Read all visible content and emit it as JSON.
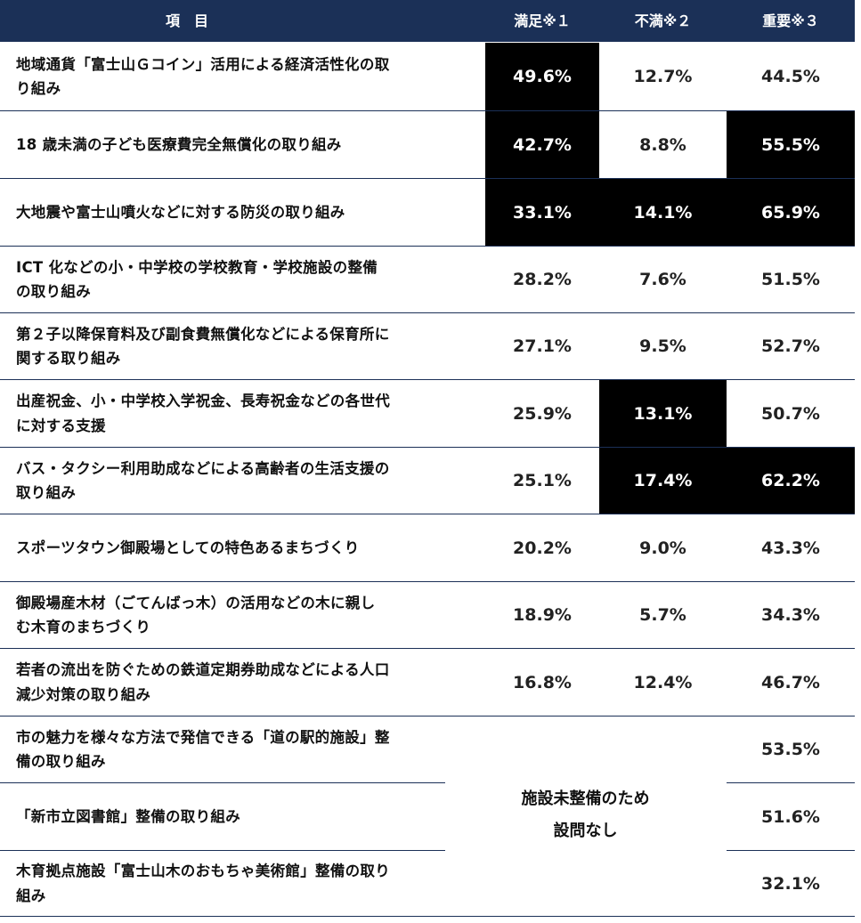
{
  "header": {
    "item": "項　目",
    "satisfied": "満足※１",
    "dissatisfied": "不満※２",
    "important": "重要※３"
  },
  "rows": [
    {
      "label": "地域通貨「富士山Ｇコイン」活用による経済活性化の取り組み",
      "satisfied": "49.6%",
      "dissatisfied": "12.7%",
      "important": "44.5%"
    },
    {
      "label": "18 歳未満の子ども医療費完全無償化の取り組み",
      "satisfied": "42.7%",
      "dissatisfied": "8.8%",
      "important": "55.5%"
    },
    {
      "label": "大地震や富士山噴火などに対する防災の取り組み",
      "satisfied": "33.1%",
      "dissatisfied": "14.1%",
      "important": "65.9%"
    },
    {
      "label": "ICT 化などの小・中学校の学校教育・学校施設の整備の取り組み",
      "satisfied": "28.2%",
      "dissatisfied": "7.6%",
      "important": "51.5%"
    },
    {
      "label": "第２子以降保育料及び副食費無償化などによる保育所に関する取り組み",
      "satisfied": "27.1%",
      "dissatisfied": "9.5%",
      "important": "52.7%"
    },
    {
      "label": "出産祝金、小・中学校入学祝金、長寿祝金などの各世代に対する支援",
      "satisfied": "25.9%",
      "dissatisfied": "13.1%",
      "important": "50.7%"
    },
    {
      "label": "バス・タクシー利用助成などによる高齢者の生活支援の取り組み",
      "satisfied": "25.1%",
      "dissatisfied": "17.4%",
      "important": "62.2%"
    },
    {
      "label": "スポーツタウン御殿場としての特色あるまちづくり",
      "satisfied": "20.2%",
      "dissatisfied": "9.0%",
      "important": "43.3%"
    },
    {
      "label": "御殿場産木材（ごてんばっ木）の活用などの木に親しむ木育のまちづくり",
      "satisfied": "18.9%",
      "dissatisfied": "5.7%",
      "important": "34.3%"
    },
    {
      "label": "若者の流出を防ぐための鉄道定期券助成などによる人口減少対策の取り組み",
      "satisfied": "16.8%",
      "dissatisfied": "12.4%",
      "important": "46.7%"
    },
    {
      "label": "市の魅力を様々な方法で発信できる「道の駅的施設」整備の取り組み",
      "satisfied": "",
      "dissatisfied": "",
      "important": "53.5%"
    },
    {
      "label": "「新市立図書館」整備の取り組み",
      "satisfied": "",
      "dissatisfied": "",
      "important": "51.6%"
    },
    {
      "label": "木育拠点施設「富士山木のおもちゃ美術館」整備の取り組み",
      "satisfied": "",
      "dissatisfied": "",
      "important": "32.1%"
    }
  ],
  "no_facility_note": {
    "line1": "施設未整備のため",
    "line2": "設問なし"
  },
  "colors": {
    "header_bg": "#1b3057",
    "highlight_bg": "#000000",
    "separator": "#1b3057"
  }
}
